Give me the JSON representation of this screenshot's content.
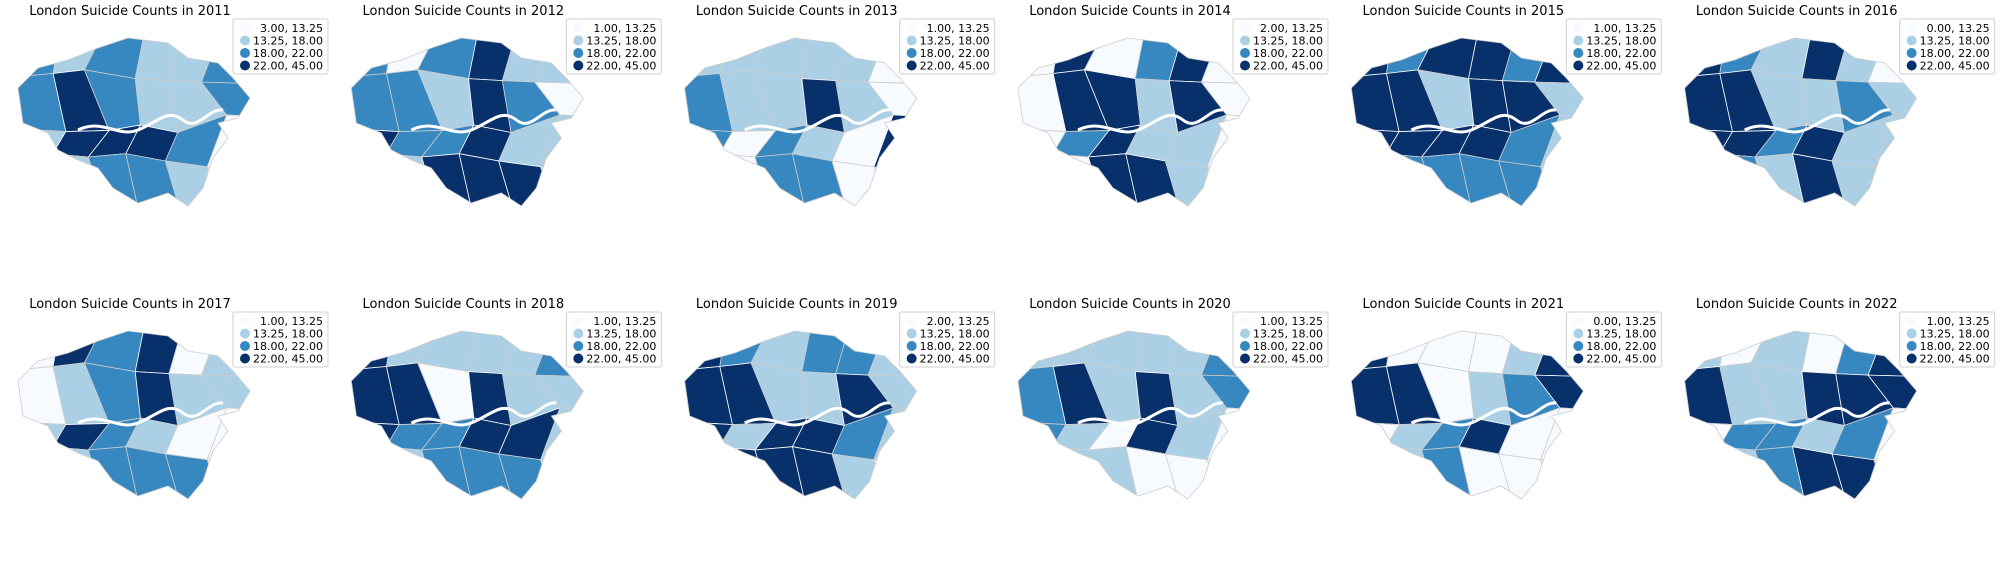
{
  "legend_colors": [
    "#f7fbff",
    "#abd0e6",
    "#3787c0",
    "#08306b"
  ],
  "colormap": "Blues",
  "maps": [
    {
      "title": "London Suicide Counts in 2011",
      "legend": [
        "3.00, 13.25",
        "13.25, 18.00",
        "18.00, 22.00",
        "22.00, 45.00"
      ],
      "classes": [
        2,
        1,
        2,
        1,
        1,
        2,
        2,
        3,
        2,
        1,
        1,
        2,
        1,
        3,
        3,
        3,
        2,
        0,
        0,
        1,
        2,
        2,
        1,
        0
      ]
    },
    {
      "title": "London Suicide Counts in 2012",
      "legend": [
        "1.00, 13.25",
        "13.25, 18.00",
        "18.00, 22.00",
        "22.00, 45.00"
      ],
      "classes": [
        2,
        0,
        2,
        3,
        1,
        1,
        2,
        2,
        1,
        3,
        2,
        0,
        3,
        2,
        2,
        3,
        1,
        1,
        0,
        1,
        3,
        3,
        3,
        0
      ]
    },
    {
      "title": "London Suicide Counts in 2013",
      "legend": [
        "1.00, 13.25",
        "13.25, 18.00",
        "18.00, 22.00",
        "22.00, 45.00"
      ],
      "classes": [
        1,
        1,
        1,
        1,
        1,
        0,
        2,
        1,
        1,
        3,
        1,
        0,
        2,
        0,
        2,
        1,
        0,
        3,
        0,
        0,
        2,
        2,
        0,
        0
      ]
    },
    {
      "title": "London Suicide Counts in 2014",
      "legend": [
        "2.00, 13.25",
        "13.25, 18.00",
        "18.00, 22.00",
        "22.00, 45.00"
      ],
      "classes": [
        0,
        3,
        0,
        2,
        3,
        0,
        0,
        3,
        3,
        1,
        3,
        0,
        0,
        2,
        3,
        1,
        1,
        0,
        0,
        0,
        3,
        3,
        1,
        0
      ]
    },
    {
      "title": "London Suicide Counts in 2015",
      "legend": [
        "1.00, 13.25",
        "13.25, 18.00",
        "18.00, 22.00",
        "22.00, 45.00"
      ],
      "classes": [
        3,
        2,
        3,
        3,
        2,
        3,
        3,
        3,
        1,
        3,
        3,
        1,
        3,
        3,
        3,
        3,
        2,
        1,
        1,
        2,
        2,
        2,
        2,
        1
      ]
    },
    {
      "title": "London Suicide Counts in 2016",
      "legend": [
        "0.00, 13.25",
        "13.25, 18.00",
        "18.00, 22.00",
        "22.00, 45.00"
      ],
      "classes": [
        3,
        2,
        1,
        3,
        1,
        0,
        3,
        3,
        1,
        1,
        2,
        1,
        3,
        3,
        2,
        3,
        1,
        1,
        0,
        2,
        1,
        3,
        1,
        1
      ]
    },
    {
      "title": "London Suicide Counts in 2017",
      "legend": [
        "1.00, 13.25",
        "13.25, 18.00",
        "18.00, 22.00",
        "22.00, 45.00"
      ],
      "classes": [
        0,
        3,
        2,
        3,
        0,
        1,
        0,
        1,
        2,
        3,
        1,
        1,
        1,
        3,
        2,
        1,
        0,
        0,
        0,
        1,
        2,
        2,
        2,
        0
      ]
    },
    {
      "title": "London Suicide Counts in 2018",
      "legend": [
        "1.00, 13.25",
        "13.25, 18.00",
        "18.00, 22.00",
        "22.00, 45.00"
      ],
      "classes": [
        3,
        1,
        1,
        1,
        1,
        2,
        3,
        3,
        0,
        3,
        1,
        1,
        3,
        2,
        2,
        3,
        3,
        1,
        0,
        1,
        2,
        2,
        2,
        0
      ]
    },
    {
      "title": "London Suicide Counts in 2019",
      "legend": [
        "2.00, 13.25",
        "13.25, 18.00",
        "18.00, 22.00",
        "22.00, 45.00"
      ],
      "classes": [
        3,
        2,
        1,
        2,
        2,
        1,
        3,
        3,
        1,
        1,
        3,
        1,
        3,
        1,
        3,
        3,
        2,
        1,
        1,
        3,
        3,
        3,
        1,
        0
      ]
    },
    {
      "title": "London Suicide Counts in 2020",
      "legend": [
        "1.00, 13.25",
        "13.25, 18.00",
        "18.00, 22.00",
        "22.00, 45.00"
      ],
      "classes": [
        1,
        1,
        1,
        1,
        1,
        2,
        2,
        3,
        1,
        3,
        1,
        2,
        2,
        1,
        0,
        3,
        1,
        0,
        0,
        1,
        1,
        0,
        0,
        0
      ]
    },
    {
      "title": "London Suicide Counts in 2021",
      "legend": [
        "0.00, 13.25",
        "13.25, 18.00",
        "18.00, 22.00",
        "22.00, 45.00"
      ],
      "classes": [
        3,
        0,
        0,
        0,
        1,
        3,
        3,
        3,
        0,
        1,
        2,
        3,
        0,
        1,
        2,
        3,
        0,
        0,
        0,
        1,
        2,
        0,
        0,
        0
      ]
    },
    {
      "title": "London Suicide Counts in 2022",
      "legend": [
        "1.00, 13.25",
        "13.25, 18.00",
        "18.00, 22.00",
        "22.00, 45.00"
      ],
      "classes": [
        1,
        0,
        1,
        0,
        2,
        3,
        3,
        1,
        1,
        3,
        3,
        3,
        0,
        2,
        2,
        1,
        2,
        0,
        0,
        1,
        2,
        3,
        3,
        0
      ]
    }
  ]
}
